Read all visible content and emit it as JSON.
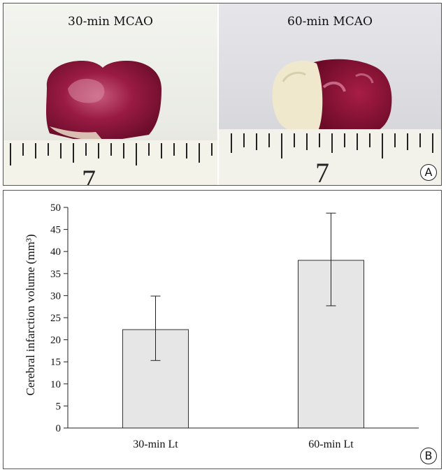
{
  "panel_a": {
    "photo_left_label": "30-min MCAO",
    "photo_right_label": "60-min MCAO",
    "left_ruler_number": "7",
    "right_ruler_number": "7",
    "badge": "A"
  },
  "panel_b": {
    "badge": "B"
  },
  "colors": {
    "bar_fill": "#e6e6e6",
    "tissue_dark": "#7a0f2e",
    "infarct_pale": "#efe6c8"
  },
  "chart_data": {
    "type": "bar",
    "categories": [
      "30-min Lt",
      "60-min Lt"
    ],
    "values": [
      22.3,
      38.0
    ],
    "error_low": [
      15.3,
      27.7
    ],
    "error_high": [
      29.9,
      48.7
    ],
    "ylabel": "Cerebral infarction volume (mm³)",
    "ylim": [
      0,
      50
    ],
    "yticks": [
      0,
      5,
      10,
      15,
      20,
      25,
      30,
      35,
      40,
      45,
      50
    ],
    "grid": false
  }
}
